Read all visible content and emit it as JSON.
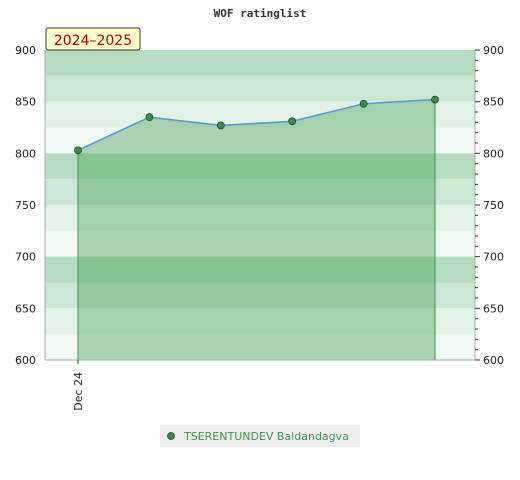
{
  "colors": {
    "band_dark": "#b3dcc0",
    "band_mid": "#cbe7d4",
    "band_light": "#e2f2e7",
    "band_pale": "#f0f8f2",
    "area_fill": "#3a9a4a",
    "line": "#5b9bd5",
    "marker": "#3d8a4e",
    "season_bg": "#ffffcc",
    "season_text": "#b00000",
    "legend_bg": "#eeeeee"
  },
  "chart_data": {
    "type": "area",
    "title": "WOF ratinglist",
    "season_label": "2024–2025",
    "ylim": [
      600,
      900
    ],
    "y_ticks": [
      "600",
      "650",
      "700",
      "750",
      "800",
      "850",
      "900"
    ],
    "x_tick_labels": [
      "Dec 24"
    ],
    "x": [
      0,
      1,
      2,
      3,
      4,
      5
    ],
    "series": [
      {
        "name": "TSERENTUNDEV Baldandagva",
        "values": [
          803,
          835,
          827,
          831,
          848,
          852
        ]
      }
    ],
    "grid": true,
    "legend_position": "bottom"
  }
}
